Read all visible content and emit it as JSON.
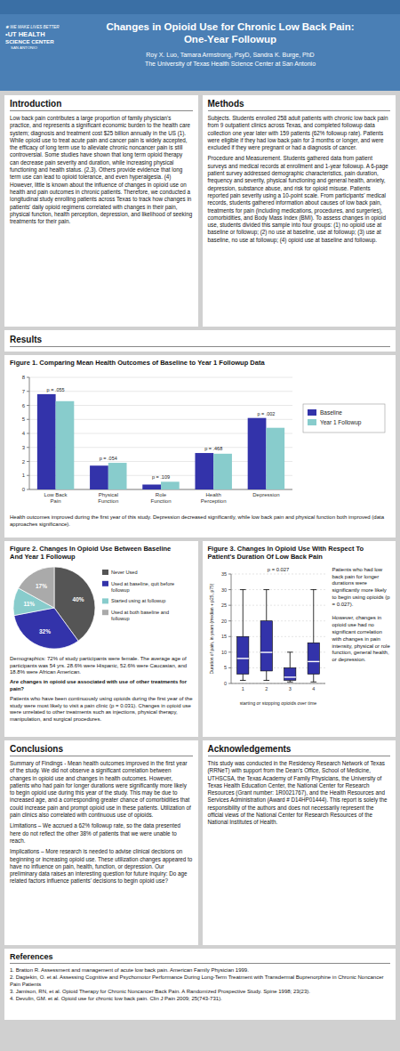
{
  "page": {
    "header_color": "#4a7fb5",
    "strip_color": "#3a6fa5",
    "logo": [
      "✱ WE MAKE LIVES BETTER",
      "•UT HEALTH",
      "SCIENCE CENTER",
      "SAN ANTONIO"
    ],
    "title": "Changes in Opioid Use for Chronic Low Back Pain:\nOne-Year Followup",
    "authors": "Roy X. Luo, Tamara Armstrong, PsyD,  Sandra K. Burge, PhD",
    "institution": "The University of Texas Health Science Center at San Antonio",
    "introduction": {
      "title": "Introduction",
      "paragraphs": [
        "Low back pain contributes a large proportion of family physician's practice, and represents a significant economic burden to the health care system; diagnosis and treatment cost $25 billion annually in the US (1). While opioid use to treat acute pain and cancer pain is widely accepted, the efficacy of long term use to alleviate chronic noncancer pain is still controversial. Some studies have shown that long term opioid therapy can decrease pain severity and duration, while increasing physical functioning and health status. (2,3). Others provide evidence that long term use can lead to opioid tolerance, and even hyperalgesia. (4) However, little is known about the influence of changes in opioid use on health and pain outcomes in chronic patients. Therefore, we conducted a longitudinal study enrolling patients across Texas to track how changes in patients' daily opioid regimens correlated with changes in their pain, physical function, health perception, depression, and likelihood of seeking treatments for their pain."
      ]
    },
    "methods": {
      "title": "Methods",
      "paragraphs": [
        "Subjects.  Students enrolled 258 adult patients with chronic low back pain from 9 outpatient clinics across Texas, and completed followup data collection one year later with 159 patients (62% followup rate). Patients were eligible if they had low back pain for 3 months or longer, and were excluded if they were pregnant or had a diagnosis of cancer.",
        "Procedure and Measurement.  Students gathered data from patient surveys and medical records at enrollment and 1-year followup.  A 6-page patient survey addressed demographic characteristics, pain duration, frequency and severity, physical functioning and general health, anxiety, depression, substance abuse, and risk for opioid misuse. Patients reported pain severity using a 10-point scale.  From participants' medical records, students gathered information about causes of low back pain, treatments for pain (including medications, procedures, and surgeries), comorbidities, and Body Mass Index (BMI).  To assess changes in opioid use, students divided this sample into four groups:  (1) no opioid use at baseline or followup; (2) no use at baseline, use at followup;  (3) use at baseline, no use at followup;  (4) opioid use at baseline and followup."
      ]
    },
    "results": {
      "title": "Results"
    },
    "figure1_caption": "Health outcomes improved during the first year of this study. Depression decreased significantly, while low back pain and physical function both improved (data approaches significance).",
    "figure2_notes": {
      "demographics": "Demographics: 72% of study participants were female. The average age of participants was 54 yrs. 28.6% were Hispanic, 52.6% were Caucasian, and 18.8% were African American.",
      "question": "Are changes in opioid use associated with use of other treatments for pain?",
      "answer": "Patients who have been continuously using opioids during the first year of the study were most likely to visit a pain clinic (p = 0.031). Changes in opioid use were unrelated to other treatments such as injections, physical therapy, manipulation, and surgical procedures."
    },
    "figure3_notes": "Patients who had low back pain for longer durations were significantly more likely to begin using opioids (p = 0.027).\n\nHowever, changes in opioid use had no significant correlation with changes in pain intensity, physical or role function, general health, or depression.",
    "conclusions": {
      "title": "Conclusions",
      "paragraphs": [
        "Summary of Findings - Mean health outcomes improved in the first year of the study. We did not observe a significant correlation between changes in opioid use and changes in health outcomes. However, patients who had pain for longer durations were significantly more likely to begin opioid use during this year of the study. This may be due to increased age, and a corresponding greater chance of comorbidities that could increase pain and prompt opioid use in these patients. Utilization of pain clinics also correlated with continuous use of opioids.",
        "Limitations – We accrued a 62% followup rate, so the data presented here do not reflect the other 38% of patients that we were unable to reach.",
        "Implications – More research is needed to advise clinical decisions on beginning or increasing opioid use. These utilization changes appeared to have no influence on pain, health, function, or depression. Our preliminary data raises an interesting question for future inquiry: Do age related factors influence patients' decisions to begin opioid use?"
      ]
    },
    "acknowledgements": {
      "title": "Acknowledgements",
      "paragraphs": [
        "This study was conducted in the Residency Research Network of Texas (RRNeT) with support from the Dean's Office, School of Medicine, UTHSCSA, the Texas Academy of Family Physicians, the University of Texas Health Education Center, the National Center for Research Resources (Grant number: 1R0021767), and the Health Resources and Services Administration (Award # D14HP01444). This report is solely the responsibility of the authors and does not necessarily represent the official views of the National Center for Research Resources of the National Institutes of Health."
      ]
    },
    "references": {
      "title": "References",
      "paragraphs": [
        "1.  Bratton R. Assessment and management of acute low back pain. American Family Physician 1999.\n2.  Dagtekin, O. et al. Assessing Cognitive and Psychomotor Performance During Long-Term Treatment with Transdermal Buprenorphine in Chronic Noncancer Pain Patients\n3.  Jamison, RN, et al. Opioid Therapy for Chronic Noncancer Back Pain. A Randomized Prospective Study. Spine 1998; 23(23).\n4.  Devulin, GM. et al. Opioid use for chronic low back pain. Clin J Pain 2009; 25(743-731)."
      ]
    }
  },
  "chart_data": [
    {
      "type": "bar",
      "title": "Figure 1. Comparing Mean Health Outcomes of Baseline to Year 1 Followup Data",
      "categories": [
        "Low Back Pain",
        "Physical Function",
        "Role Function",
        "Health Perception",
        "Depression"
      ],
      "series": [
        {
          "name": "Baseline",
          "color": "#3333aa",
          "values": [
            6.8,
            1.7,
            0.35,
            2.6,
            5.1
          ]
        },
        {
          "name": "Year 1 Followup",
          "color": "#88cccc",
          "values": [
            6.3,
            1.9,
            0.55,
            2.55,
            4.4
          ]
        }
      ],
      "annotations": [
        "p = .055",
        "p = .054",
        "p = .109",
        "p = .468",
        "p = .002"
      ],
      "ylim": [
        0,
        8
      ],
      "yticks": [
        0,
        1,
        2,
        3,
        4,
        5,
        6,
        7,
        8
      ],
      "grid": true,
      "legend": "right"
    },
    {
      "type": "pie",
      "title": "Figure 2. Changes In Opioid Use Between Baseline\nAnd Year 1 Followup",
      "categories": [
        "Never Used",
        "Used at baseline, quit before\nfollowup",
        "Started using at followup",
        "Used at both baseline and\nfollowup"
      ],
      "values": [
        40,
        32,
        11,
        17
      ],
      "value_labels": [
        "40%",
        "32%",
        "11%",
        "17%"
      ],
      "colors": [
        "#555555",
        "#3333aa",
        "#88cccc",
        "#aaaaaa"
      ],
      "data_labels": true,
      "legend": "right"
    },
    {
      "type": "box",
      "title": "Figure 3. Changes In Opioid Use With Respect To Patient's Duration Of Low Back Pain",
      "x_label": "starting or stopping opioids over time",
      "y_label": "Duration of pain, in years (median + p25, p75)",
      "categories": [
        "1",
        "2",
        "3",
        "4"
      ],
      "series": [
        {
          "color": "#3333aa",
          "median": [
            8.0,
            9.94,
            2.0,
            7.0
          ],
          "q1": [
            3.0,
            4.0,
            1.0,
            3.0
          ],
          "q3": [
            15.0,
            20.0,
            5.0,
            13.0
          ],
          "whislo": [
            1.0,
            1.0,
            0.5,
            0.5
          ],
          "whishi": [
            30.0,
            30.0,
            10.0,
            30.0
          ]
        }
      ],
      "annotations": [
        "p = 0.027"
      ],
      "ylim": [
        0,
        35
      ],
      "yticks": [
        0,
        5,
        10,
        15,
        20,
        25,
        30,
        35
      ],
      "grid": true
    }
  ]
}
